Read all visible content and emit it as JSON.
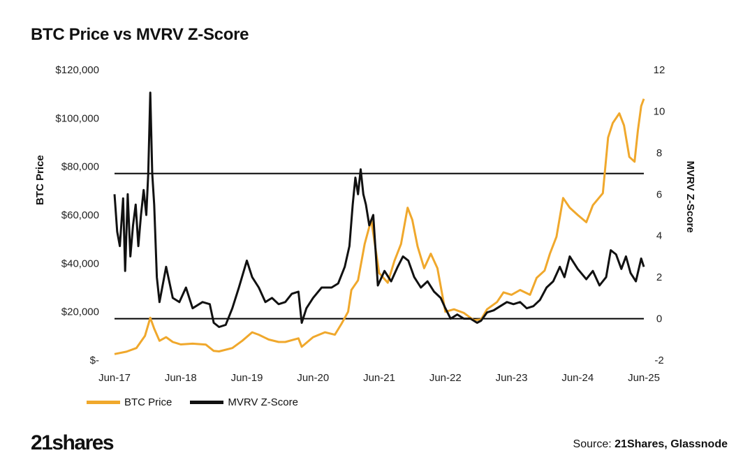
{
  "chart_data": {
    "type": "line",
    "title": "BTC Price vs MVRV Z-Score",
    "y_left_label": "BTC Price",
    "y_right_label": "MVRV Z-Score",
    "x_ticks": [
      "Jun-17",
      "Jun-18",
      "Jun-19",
      "Jun-20",
      "Jun-21",
      "Jun-22",
      "Jun-23",
      "Jun-24",
      "Jun-25"
    ],
    "y_left_ticks": [
      "$-",
      "$20,000",
      "$40,000",
      "$60,000",
      "$80,000",
      "$100,000",
      "$120,000"
    ],
    "y_right_ticks": [
      "-2",
      "0",
      "2",
      "4",
      "6",
      "8",
      "10",
      "12"
    ],
    "y_left_range": [
      0,
      120000
    ],
    "y_right_range": [
      -2,
      12
    ],
    "x_range": [
      2017.42,
      2025.42
    ],
    "reference_lines_zscore": [
      7,
      0
    ],
    "legend_position": "bottom-left",
    "series": [
      {
        "name": "BTC Price",
        "color": "#F0A82C",
        "axis": "left",
        "x": [
          2017.42,
          2017.6,
          2017.75,
          2017.88,
          2017.96,
          2018.02,
          2018.1,
          2018.2,
          2018.3,
          2018.42,
          2018.6,
          2018.8,
          2018.92,
          2019.0,
          2019.2,
          2019.35,
          2019.5,
          2019.6,
          2019.75,
          2019.9,
          2020.0,
          2020.2,
          2020.25,
          2020.42,
          2020.6,
          2020.75,
          2020.85,
          2020.95,
          2021.0,
          2021.1,
          2021.2,
          2021.3,
          2021.42,
          2021.55,
          2021.65,
          2021.75,
          2021.85,
          2021.92,
          2022.0,
          2022.1,
          2022.2,
          2022.3,
          2022.42,
          2022.55,
          2022.7,
          2022.85,
          2022.96,
          2023.05,
          2023.2,
          2023.3,
          2023.42,
          2023.55,
          2023.7,
          2023.8,
          2023.92,
          2024.0,
          2024.1,
          2024.2,
          2024.3,
          2024.42,
          2024.55,
          2024.65,
          2024.8,
          2024.88,
          2024.95,
          2025.05,
          2025.12,
          2025.2,
          2025.28,
          2025.33,
          2025.38,
          2025.42
        ],
        "values": [
          2500,
          3500,
          5000,
          10000,
          17500,
          13000,
          8000,
          9500,
          7500,
          6500,
          6800,
          6400,
          3800,
          3600,
          5000,
          8000,
          11500,
          10500,
          8500,
          7500,
          7500,
          9000,
          5500,
          9500,
          11500,
          10500,
          15000,
          20000,
          29000,
          33000,
          48000,
          58000,
          36000,
          32000,
          41000,
          48000,
          63000,
          58000,
          47000,
          38000,
          44000,
          38000,
          20000,
          21000,
          19500,
          16500,
          16800,
          21000,
          24000,
          28000,
          27000,
          29000,
          27000,
          34000,
          37000,
          44000,
          51000,
          67000,
          63000,
          60000,
          57000,
          64000,
          69000,
          92000,
          98000,
          102000,
          97000,
          84000,
          82000,
          95000,
          105000,
          108000
        ]
      },
      {
        "name": "MVRV Z-Score",
        "color": "#111111",
        "axis": "right",
        "x": [
          2017.42,
          2017.46,
          2017.5,
          2017.55,
          2017.58,
          2017.62,
          2017.66,
          2017.7,
          2017.74,
          2017.78,
          2017.82,
          2017.86,
          2017.9,
          2017.93,
          2017.96,
          2017.99,
          2018.02,
          2018.06,
          2018.1,
          2018.2,
          2018.3,
          2018.4,
          2018.5,
          2018.6,
          2018.75,
          2018.86,
          2018.92,
          2019.0,
          2019.1,
          2019.2,
          2019.3,
          2019.42,
          2019.5,
          2019.6,
          2019.7,
          2019.8,
          2019.9,
          2020.0,
          2020.1,
          2020.2,
          2020.25,
          2020.32,
          2020.42,
          2020.55,
          2020.7,
          2020.8,
          2020.9,
          2020.97,
          2021.02,
          2021.06,
          2021.1,
          2021.14,
          2021.18,
          2021.22,
          2021.27,
          2021.33,
          2021.4,
          2021.5,
          2021.6,
          2021.7,
          2021.78,
          2021.86,
          2021.95,
          2022.05,
          2022.15,
          2022.25,
          2022.35,
          2022.42,
          2022.5,
          2022.6,
          2022.7,
          2022.8,
          2022.9,
          2022.96,
          2023.05,
          2023.15,
          2023.25,
          2023.35,
          2023.45,
          2023.55,
          2023.65,
          2023.75,
          2023.85,
          2023.95,
          2024.05,
          2024.15,
          2024.22,
          2024.3,
          2024.42,
          2024.55,
          2024.65,
          2024.75,
          2024.85,
          2024.92,
          2025.0,
          2025.08,
          2025.15,
          2025.22,
          2025.3,
          2025.38,
          2025.42
        ],
        "values": [
          6.0,
          4.2,
          3.5,
          5.8,
          2.3,
          6.0,
          3.0,
          4.5,
          5.5,
          3.5,
          5.0,
          6.2,
          5.0,
          7.0,
          10.9,
          7.0,
          5.5,
          2.0,
          0.8,
          2.5,
          1.0,
          0.8,
          1.5,
          0.5,
          0.8,
          0.7,
          -0.2,
          -0.4,
          -0.3,
          0.5,
          1.5,
          2.8,
          2.0,
          1.5,
          0.8,
          1.0,
          0.7,
          0.8,
          1.2,
          1.3,
          -0.2,
          0.5,
          1.0,
          1.5,
          1.5,
          1.7,
          2.5,
          3.5,
          5.5,
          6.8,
          6.0,
          7.2,
          6.0,
          5.5,
          4.5,
          5.0,
          1.6,
          2.3,
          1.8,
          2.5,
          3.0,
          2.8,
          2.0,
          1.5,
          1.8,
          1.3,
          1.0,
          0.5,
          0.0,
          0.2,
          0.0,
          0.0,
          -0.2,
          -0.1,
          0.3,
          0.4,
          0.6,
          0.8,
          0.7,
          0.8,
          0.5,
          0.6,
          0.9,
          1.5,
          1.8,
          2.5,
          2.0,
          3.0,
          2.4,
          1.9,
          2.3,
          1.6,
          2.0,
          3.3,
          3.1,
          2.4,
          3.0,
          2.2,
          1.8,
          2.9,
          2.5
        ]
      }
    ]
  },
  "legend": {
    "items": [
      {
        "label": "BTC Price",
        "color": "#F0A82C"
      },
      {
        "label": "MVRV Z-Score",
        "color": "#111111"
      }
    ]
  },
  "footer": {
    "logo_text": "21shares",
    "source_prefix": "Source: ",
    "source_names": "21Shares, Glassnode"
  }
}
